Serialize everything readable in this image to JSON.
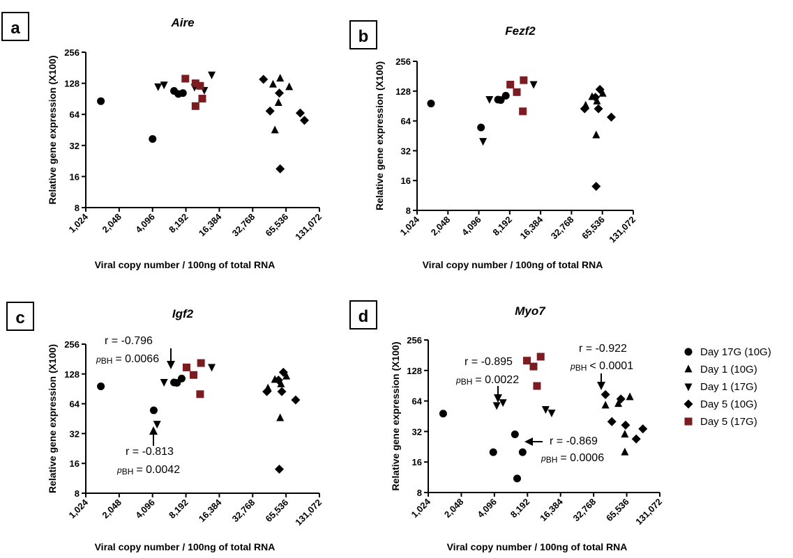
{
  "colors": {
    "black": "#000000",
    "maroon": "#7b1c22"
  },
  "legend": [
    {
      "label": "Day 17G (10G)",
      "marker": "circle",
      "color": "#000000"
    },
    {
      "label": "Day 1 (10G)",
      "marker": "triangle-up",
      "color": "#000000"
    },
    {
      "label": "Day 1 (17G)",
      "marker": "triangle-down",
      "color": "#000000"
    },
    {
      "label": "Day 5 (10G)",
      "marker": "diamond",
      "color": "#000000"
    },
    {
      "label": "Day 5 (17G)",
      "marker": "square",
      "color": "#7b1c22"
    }
  ],
  "chart_data": [
    {
      "type": "scatter",
      "panel": "a",
      "title": "Aire",
      "xlabel": "Viral copy number / 100ng of total RNA",
      "ylabel": "Relative gene expression (X100)",
      "x_scale": "log2",
      "y_scale": "log2",
      "grid": false,
      "xlim": [
        1024,
        131072
      ],
      "ylim": [
        8,
        256
      ],
      "xticks": [
        "1,024",
        "2,048",
        "4,096",
        "8,192",
        "16,384",
        "32,768",
        "65,536",
        "131,072"
      ],
      "yticks": [
        "8",
        "16",
        "32",
        "64",
        "128",
        "256"
      ],
      "series": [
        {
          "name": "Day 17G (10G)",
          "points": [
            [
              1400,
              86
            ],
            [
              4100,
              37
            ],
            [
              6400,
              108
            ],
            [
              7000,
              101
            ],
            [
              7700,
              103
            ]
          ]
        },
        {
          "name": "Day 1 (10G)",
          "points": [
            [
              50000,
              125
            ],
            [
              58000,
              143
            ],
            [
              56000,
              83
            ],
            [
              70000,
              118
            ],
            [
              52000,
              45
            ]
          ]
        },
        {
          "name": "Day 1 (17G)",
          "points": [
            [
              4600,
              119
            ],
            [
              5200,
              124
            ],
            [
              9800,
              118
            ],
            [
              12000,
              110
            ],
            [
              14000,
              155
            ]
          ]
        },
        {
          "name": "Day 5 (10G)",
          "points": [
            [
              41000,
              140
            ],
            [
              57000,
              103
            ],
            [
              47000,
              69
            ],
            [
              58000,
              19
            ],
            [
              88000,
              66
            ],
            [
              96000,
              56
            ]
          ]
        },
        {
          "name": "Day 5 (17G)",
          "points": [
            [
              8100,
              142
            ],
            [
              10000,
              128
            ],
            [
              11000,
              121
            ],
            [
              10000,
              77
            ],
            [
              11500,
              91
            ]
          ]
        }
      ]
    },
    {
      "type": "scatter",
      "panel": "b",
      "title": "Fezf2",
      "xlabel": "Viral copy number / 100ng of total RNA",
      "ylabel": "Relative gene expression (X100)",
      "x_scale": "log2",
      "y_scale": "log2",
      "grid": false,
      "xlim": [
        1024,
        131072
      ],
      "ylim": [
        8,
        256
      ],
      "xticks": [
        "1,024",
        "2,048",
        "4,096",
        "8,192",
        "16,384",
        "32,768",
        "65,536",
        "131,072"
      ],
      "yticks": [
        "8",
        "16",
        "32",
        "64",
        "128",
        "256"
      ],
      "series": [
        {
          "name": "Day 17G (10G)",
          "points": [
            [
              1400,
              96
            ],
            [
              4300,
              55
            ],
            [
              6300,
              105
            ],
            [
              6700,
              104
            ],
            [
              7500,
              115
            ]
          ]
        },
        {
          "name": "Day 1 (10G)",
          "points": [
            [
              52000,
              112
            ],
            [
              58000,
              101
            ],
            [
              66000,
              121
            ],
            [
              57000,
              46
            ],
            [
              45000,
              92
            ]
          ]
        },
        {
          "name": "Day 1 (17G)",
          "points": [
            [
              4500,
              40
            ],
            [
              5200,
              106
            ],
            [
              14000,
              150
            ]
          ]
        },
        {
          "name": "Day 5 (10G)",
          "points": [
            [
              44000,
              85
            ],
            [
              56000,
              111
            ],
            [
              62000,
              133
            ],
            [
              60000,
              85
            ],
            [
              57000,
              14
            ],
            [
              80000,
              70
            ]
          ]
        },
        {
          "name": "Day 5 (17G)",
          "points": [
            [
              8300,
              149
            ],
            [
              9600,
              125
            ],
            [
              11200,
              165
            ],
            [
              11000,
              80
            ]
          ]
        }
      ]
    },
    {
      "type": "scatter",
      "panel": "c",
      "title": "Igf2",
      "xlabel": "Viral copy number / 100ng of total RNA",
      "ylabel": "Relative gene expression (X100)",
      "x_scale": "log2",
      "y_scale": "log2",
      "grid": false,
      "xlim": [
        1024,
        131072
      ],
      "ylim": [
        8,
        256
      ],
      "xticks": [
        "1,024",
        "2,048",
        "4,096",
        "8,192",
        "16,384",
        "32,768",
        "65,536",
        "131,072"
      ],
      "yticks": [
        "8",
        "16",
        "32",
        "64",
        "128",
        "256"
      ],
      "series": [
        {
          "name": "Day 17G (10G)",
          "points": [
            [
              1400,
              96
            ],
            [
              4200,
              55
            ],
            [
              6400,
              105
            ],
            [
              6800,
              104
            ],
            [
              7500,
              115
            ]
          ]
        },
        {
          "name": "Day 1 (10G)",
          "points": [
            [
              52000,
              112
            ],
            [
              59000,
              101
            ],
            [
              66000,
              121
            ],
            [
              58000,
              46
            ],
            [
              45000,
              92
            ]
          ]
        },
        {
          "name": "Day 1 (17G)",
          "points": [
            [
              4500,
              40
            ],
            [
              5200,
              106
            ],
            [
              14000,
              150
            ]
          ]
        },
        {
          "name": "Day 5 (10G)",
          "points": [
            [
              44000,
              85
            ],
            [
              56000,
              111
            ],
            [
              62000,
              133
            ],
            [
              60000,
              85
            ],
            [
              57000,
              14
            ],
            [
              80000,
              70
            ]
          ]
        },
        {
          "name": "Day 5 (17G)",
          "points": [
            [
              8300,
              149
            ],
            [
              9600,
              125
            ],
            [
              11200,
              165
            ],
            [
              11000,
              80
            ]
          ]
        }
      ],
      "annotations": [
        {
          "r": "r = -0.796",
          "pbh": "= 0.0066"
        },
        {
          "r": "r = -0.813",
          "pbh": "= 0.0042"
        }
      ]
    },
    {
      "type": "scatter",
      "panel": "d",
      "title": "Myo7",
      "xlabel": "Viral copy number / 100ng of total RNA",
      "ylabel": "Relative gene expression (X100)",
      "x_scale": "log2",
      "y_scale": "log2",
      "grid": false,
      "xlim": [
        1024,
        131072
      ],
      "ylim": [
        8,
        256
      ],
      "xticks": [
        "1,024",
        "2,048",
        "4,096",
        "8,192",
        "16,384",
        "32,768",
        "65,536",
        "131,072"
      ],
      "yticks": [
        "8",
        "16",
        "32",
        "64",
        "128",
        "256"
      ],
      "series": [
        {
          "name": "Day 17G (10G)",
          "points": [
            [
              1400,
              48
            ],
            [
              4000,
              20
            ],
            [
              6300,
              30
            ],
            [
              7400,
              20
            ],
            [
              6600,
              11
            ]
          ]
        },
        {
          "name": "Day 1 (10G)",
          "points": [
            [
              42000,
              58
            ],
            [
              55000,
              60
            ],
            [
              70000,
              70
            ],
            [
              63000,
              30
            ],
            [
              63000,
              20
            ]
          ]
        },
        {
          "name": "Day 1 (17G)",
          "points": [
            [
              4300,
              58
            ],
            [
              4900,
              62
            ],
            [
              12000,
              53
            ],
            [
              13600,
              49
            ]
          ]
        },
        {
          "name": "Day 5 (10G)",
          "points": [
            [
              42000,
              74
            ],
            [
              48000,
              40
            ],
            [
              58000,
              67
            ],
            [
              64000,
              37
            ],
            [
              80000,
              27
            ],
            [
              92000,
              34
            ]
          ]
        },
        {
          "name": "Day 5 (17G)",
          "points": [
            [
              8100,
              160
            ],
            [
              9300,
              140
            ],
            [
              10800,
              175
            ],
            [
              10000,
              90
            ]
          ]
        }
      ],
      "annotations": [
        {
          "r": "r = -0.895",
          "pbh": "= 0.0022"
        },
        {
          "r": "r = -0.922",
          "pbh": "< 0.0001"
        },
        {
          "r": "r = -0.869",
          "pbh": "= 0.0006"
        }
      ]
    }
  ],
  "pbh_label": {
    "p": "p",
    "sub": "BH"
  }
}
